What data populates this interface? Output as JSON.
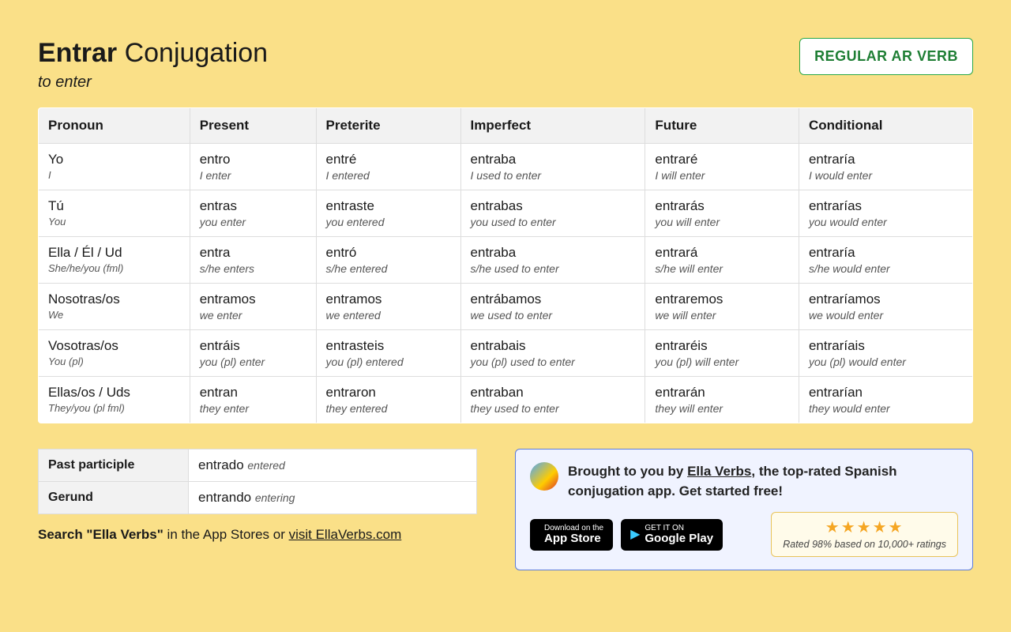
{
  "title": {
    "verb": "Entrar",
    "rest": "Conjugation",
    "subtitle": "to enter"
  },
  "badge": "REGULAR AR VERB",
  "columns": [
    "Pronoun",
    "Present",
    "Preterite",
    "Imperfect",
    "Future",
    "Conditional"
  ],
  "rows": [
    {
      "pronoun": {
        "es": "Yo",
        "en": "I"
      },
      "cells": [
        {
          "es": "entro",
          "en": "I enter"
        },
        {
          "es": "entré",
          "en": "I entered"
        },
        {
          "es": "entraba",
          "en": "I used to enter"
        },
        {
          "es": "entraré",
          "en": "I will enter"
        },
        {
          "es": "entraría",
          "en": "I would enter"
        }
      ]
    },
    {
      "pronoun": {
        "es": "Tú",
        "en": "You"
      },
      "cells": [
        {
          "es": "entras",
          "en": "you enter"
        },
        {
          "es": "entraste",
          "en": "you entered"
        },
        {
          "es": "entrabas",
          "en": "you used to enter"
        },
        {
          "es": "entrarás",
          "en": "you will enter"
        },
        {
          "es": "entrarías",
          "en": "you would enter"
        }
      ]
    },
    {
      "pronoun": {
        "es": "Ella / Él / Ud",
        "en": "She/he/you (fml)"
      },
      "cells": [
        {
          "es": "entra",
          "en": "s/he enters"
        },
        {
          "es": "entró",
          "en": "s/he entered"
        },
        {
          "es": "entraba",
          "en": "s/he used to enter"
        },
        {
          "es": "entrará",
          "en": "s/he will enter"
        },
        {
          "es": "entraría",
          "en": "s/he would enter"
        }
      ]
    },
    {
      "pronoun": {
        "es": "Nosotras/os",
        "en": "We"
      },
      "cells": [
        {
          "es": "entramos",
          "en": "we enter"
        },
        {
          "es": "entramos",
          "en": "we entered"
        },
        {
          "es": "entrábamos",
          "en": "we used to enter"
        },
        {
          "es": "entraremos",
          "en": "we will enter"
        },
        {
          "es": "entraríamos",
          "en": "we would enter"
        }
      ]
    },
    {
      "pronoun": {
        "es": "Vosotras/os",
        "en": "You (pl)"
      },
      "cells": [
        {
          "es": "entráis",
          "en": "you (pl) enter"
        },
        {
          "es": "entrasteis",
          "en": "you (pl) entered"
        },
        {
          "es": "entrabais",
          "en": "you (pl) used to enter"
        },
        {
          "es": "entraréis",
          "en": "you (pl) will enter"
        },
        {
          "es": "entraríais",
          "en": "you (pl) would enter"
        }
      ]
    },
    {
      "pronoun": {
        "es": "Ellas/os / Uds",
        "en": "They/you (pl fml)"
      },
      "cells": [
        {
          "es": "entran",
          "en": "they enter"
        },
        {
          "es": "entraron",
          "en": "they entered"
        },
        {
          "es": "entraban",
          "en": "they used to enter"
        },
        {
          "es": "entrarán",
          "en": "they will enter"
        },
        {
          "es": "entrarían",
          "en": "they would enter"
        }
      ]
    }
  ],
  "forms": [
    {
      "label": "Past participle",
      "es": "entrado",
      "en": "entered"
    },
    {
      "label": "Gerund",
      "es": "entrando",
      "en": "entering"
    }
  ],
  "searchNote": {
    "bold": "Search \"Ella Verbs\"",
    "rest": " in the App Stores or ",
    "link": "visit EllaVerbs.com"
  },
  "promo": {
    "text1": "Brought to you by ",
    "link": "Ella Verbs",
    "text2": ", the top-rated Spanish conjugation app. Get started free!",
    "appstore": {
      "small": "Download on the",
      "big": "App Store"
    },
    "play": {
      "small": "GET IT ON",
      "big": "Google Play"
    },
    "stars": "★★★★★",
    "rating": "Rated 98% based on 10,000+ ratings"
  }
}
